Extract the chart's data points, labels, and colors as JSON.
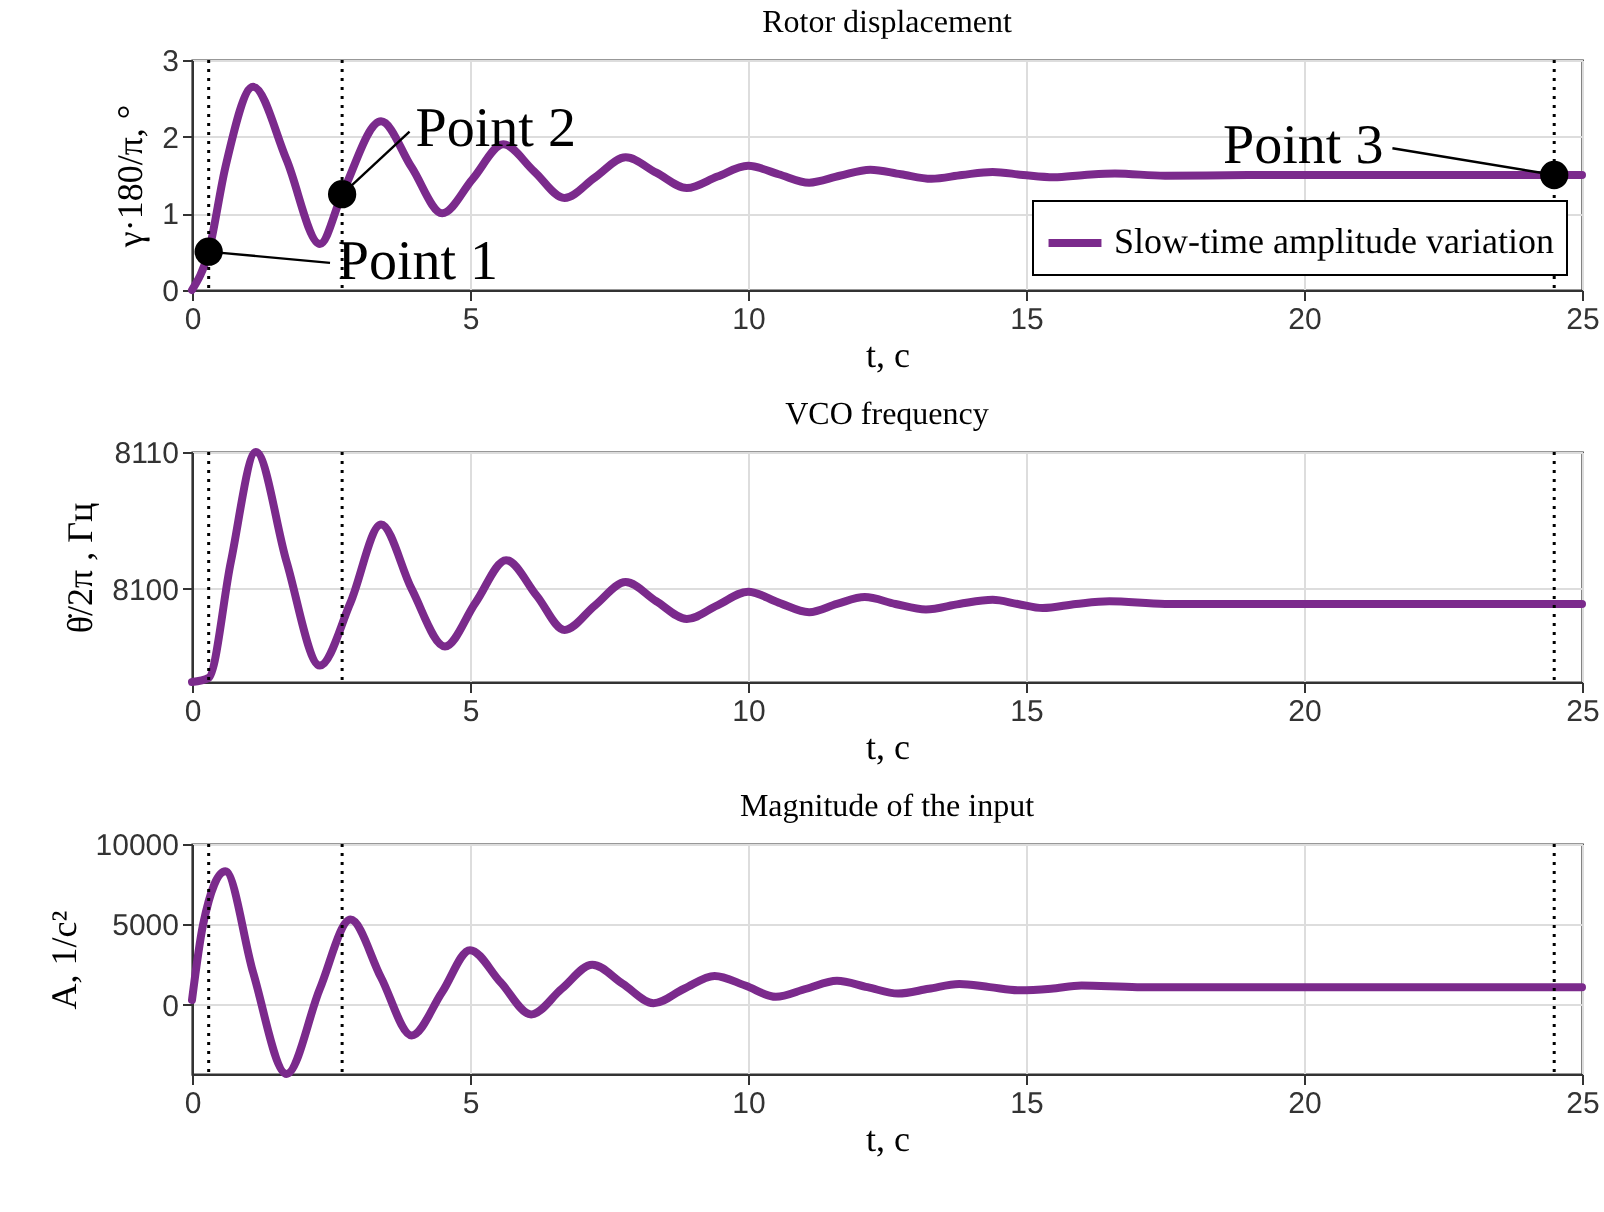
{
  "chart_data": [
    {
      "type": "line",
      "title": "Rotor displacement",
      "xlabel": "t, c",
      "ylabel": "γ·180/π, °",
      "xlim": [
        0,
        25
      ],
      "xticks": [
        0,
        5,
        10,
        15,
        20,
        25
      ],
      "ylim": [
        0,
        3
      ],
      "yticks": [
        0,
        1,
        2,
        3
      ],
      "grid": true,
      "legend": "bottom right",
      "line_style": "solid",
      "x": [
        0,
        0.3,
        0.6,
        1.1,
        1.7,
        2.3,
        2.7,
        3.4,
        3.95,
        4.5,
        5.05,
        5.6,
        6.15,
        6.7,
        7.25,
        7.8,
        8.35,
        8.9,
        9.45,
        10,
        10.55,
        11.1,
        11.65,
        12.2,
        12.75,
        13.3,
        13.85,
        14.4,
        14.95,
        15.5,
        16.05,
        16.6,
        17.5,
        19,
        21,
        23,
        25
      ],
      "series": [
        {
          "name": "Slow-time amplitude variation",
          "color": "#7b2a8c",
          "values": [
            0,
            0.5,
            1.6,
            2.65,
            1.7,
            0.6,
            1.25,
            2.2,
            1.6,
            1.0,
            1.45,
            1.9,
            1.55,
            1.2,
            1.47,
            1.73,
            1.53,
            1.33,
            1.48,
            1.62,
            1.51,
            1.4,
            1.49,
            1.57,
            1.51,
            1.45,
            1.5,
            1.54,
            1.5,
            1.47,
            1.5,
            1.52,
            1.49,
            1.5,
            1.5,
            1.5,
            1.5
          ]
        },
        {
          "type": "scatter",
          "marker": "circle",
          "color": "#000000",
          "x": [
            0.3,
            2.7,
            24.5
          ],
          "values": [
            0.5,
            1.25,
            1.5
          ]
        }
      ],
      "ref_lines": [
        {
          "axis": "x",
          "value": 0.3,
          "color": "#000000",
          "line_style": "dotted"
        },
        {
          "axis": "x",
          "value": 2.7,
          "color": "#000000",
          "line_style": "dotted"
        },
        {
          "axis": "x",
          "value": 24.5,
          "color": "#000000",
          "line_style": "dotted"
        }
      ],
      "annotations": [
        {
          "text": "Point 1",
          "x": 0.3,
          "y": 0.5
        },
        {
          "text": "Point 2",
          "x": 2.7,
          "y": 1.25
        },
        {
          "text": "Point 3",
          "x": 24.5,
          "y": 1.5
        }
      ]
    },
    {
      "type": "line",
      "title": "VCO frequency",
      "xlabel": "t, c",
      "ylabel": "θ̇/2π , Гц",
      "xlim": [
        0,
        25
      ],
      "xticks": [
        0,
        5,
        10,
        15,
        20,
        25
      ],
      "ylim": [
        8093.2,
        8110
      ],
      "yticks": [
        8100,
        8110
      ],
      "grid": true,
      "line_style": "solid",
      "x": [
        0,
        0.3,
        0.7,
        1.15,
        1.7,
        2.3,
        2.85,
        3.4,
        3.95,
        4.55,
        5.1,
        5.65,
        6.2,
        6.7,
        7.25,
        7.8,
        8.35,
        8.9,
        9.45,
        10,
        10.55,
        11.1,
        11.6,
        12.1,
        12.65,
        13.2,
        13.8,
        14.4,
        14.85,
        15.3,
        15.9,
        16.5,
        17.5,
        19,
        21,
        23,
        25
      ],
      "series": [
        {
          "color": "#7b2a8c",
          "values": [
            8093.2,
            8093.5,
            8102,
            8110,
            8102,
            8094.4,
            8099,
            8104.7,
            8100,
            8095.8,
            8099,
            8102.1,
            8099.5,
            8097,
            8098.8,
            8100.5,
            8099.1,
            8097.8,
            8098.8,
            8099.8,
            8099,
            8098.3,
            8098.9,
            8099.4,
            8098.9,
            8098.5,
            8098.9,
            8099.2,
            8098.9,
            8098.6,
            8098.9,
            8099.1,
            8098.9,
            8098.9,
            8098.9,
            8098.9,
            8098.9
          ]
        }
      ],
      "ref_lines": [
        {
          "axis": "x",
          "value": 0.3,
          "color": "#000000",
          "line_style": "dotted"
        },
        {
          "axis": "x",
          "value": 2.7,
          "color": "#000000",
          "line_style": "dotted"
        },
        {
          "axis": "x",
          "value": 24.5,
          "color": "#000000",
          "line_style": "dotted"
        }
      ]
    },
    {
      "type": "line",
      "title": "Magnitude of the input",
      "xlabel": "t, c",
      "ylabel": "A, 1/c²",
      "xlim": [
        0,
        25
      ],
      "xticks": [
        0,
        5,
        10,
        15,
        20,
        25
      ],
      "ylim": [
        -4300,
        10000
      ],
      "yticks": [
        0,
        5000,
        10000
      ],
      "grid": true,
      "line_style": "solid",
      "x": [
        0,
        0.2,
        0.6,
        1.1,
        1.7,
        2.3,
        2.85,
        3.4,
        3.95,
        4.5,
        5.0,
        5.55,
        6.1,
        6.65,
        7.2,
        7.75,
        8.3,
        8.85,
        9.4,
        9.95,
        10.5,
        11.05,
        11.6,
        12.15,
        12.7,
        13.25,
        13.8,
        14.35,
        14.9,
        15.45,
        16.0,
        17,
        19,
        21,
        23,
        25
      ],
      "series": [
        {
          "color": "#7b2a8c",
          "values": [
            300,
            5000,
            8300,
            2000,
            -4300,
            1000,
            5300,
            1700,
            -1900,
            800,
            3400,
            1400,
            -600,
            1000,
            2500,
            1300,
            100,
            1000,
            1800,
            1200,
            500,
            1000,
            1500,
            1100,
            700,
            1000,
            1300,
            1100,
            900,
            1000,
            1200,
            1100,
            1100,
            1100,
            1100,
            1100
          ]
        }
      ],
      "ref_lines": [
        {
          "axis": "x",
          "value": 0.3,
          "color": "#000000",
          "line_style": "dotted"
        },
        {
          "axis": "x",
          "value": 2.7,
          "color": "#000000",
          "line_style": "dotted"
        },
        {
          "axis": "x",
          "value": 24.5,
          "color": "#000000",
          "line_style": "dotted"
        }
      ]
    }
  ]
}
